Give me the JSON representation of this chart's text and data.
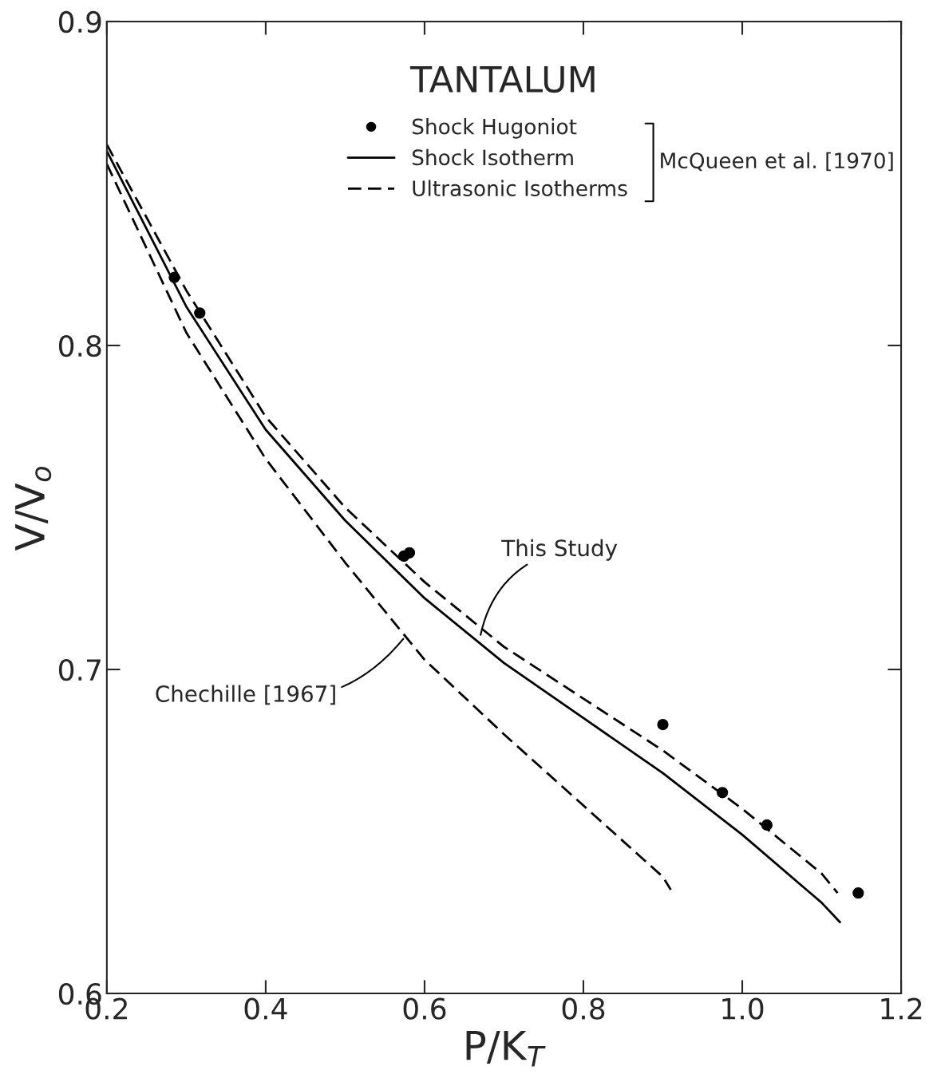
{
  "chart_data": {
    "type": "line",
    "title": "TANTALUM",
    "xlabel": "P/K$_{T}$",
    "ylabel": "V/V$_{o}$",
    "xlim": [
      0.2,
      1.2
    ],
    "ylim": [
      0.6,
      0.9
    ],
    "xticks": [
      0.2,
      0.4,
      0.6,
      0.8,
      {
        "value": 1.0,
        "label": "1.0"
      },
      1.2
    ],
    "yticks": [
      0.6,
      0.7,
      0.8,
      0.9
    ],
    "grid": false,
    "legend": "top right",
    "series": [
      {
        "name": "Shock Hugoniot",
        "type": "scatter",
        "marker": "circle",
        "color": "#000000",
        "x": [
          0.285,
          0.317,
          0.574,
          0.581,
          0.9,
          0.975,
          1.031,
          1.146
        ],
        "values": [
          0.821,
          0.81,
          0.735,
          0.736,
          0.683,
          0.662,
          0.652,
          0.631
        ]
      },
      {
        "name": "Shock Isotherm",
        "line_style": "solid",
        "color": "#000000",
        "x": [
          0.2,
          0.3,
          0.4,
          0.5,
          0.6,
          0.7,
          0.8,
          0.9,
          1.0,
          1.1,
          1.123
        ],
        "values": [
          0.86,
          0.812,
          0.774,
          0.746,
          0.722,
          0.702,
          0.685,
          0.668,
          0.649,
          0.628,
          0.622
        ]
      },
      {
        "name": "Ultrasonic Isotherms",
        "line_style": "dashed",
        "color": "#000000",
        "x": [
          0.2,
          0.3,
          0.4,
          0.5,
          0.6,
          0.7,
          0.8,
          0.9,
          1.0,
          1.1,
          1.12
        ],
        "values": [
          0.862,
          0.817,
          0.778,
          0.75,
          0.727,
          0.707,
          0.691,
          0.675,
          0.657,
          0.637,
          0.631
        ]
      },
      {
        "line_style": "dashed",
        "color": "#000000",
        "x": [
          0.2,
          0.3,
          0.4,
          0.5,
          0.6,
          0.7,
          0.8,
          0.9,
          0.91
        ],
        "values": [
          0.856,
          0.804,
          0.765,
          0.733,
          0.703,
          0.68,
          0.658,
          0.636,
          0.632
        ]
      }
    ],
    "annotations": [
      "McQueen et al. [1970]",
      {
        "text": "This Study",
        "x": 0.67,
        "y": 0.71
      },
      {
        "text": "Chechille [1967]",
        "x": 0.575,
        "y": 0.71
      }
    ]
  }
}
